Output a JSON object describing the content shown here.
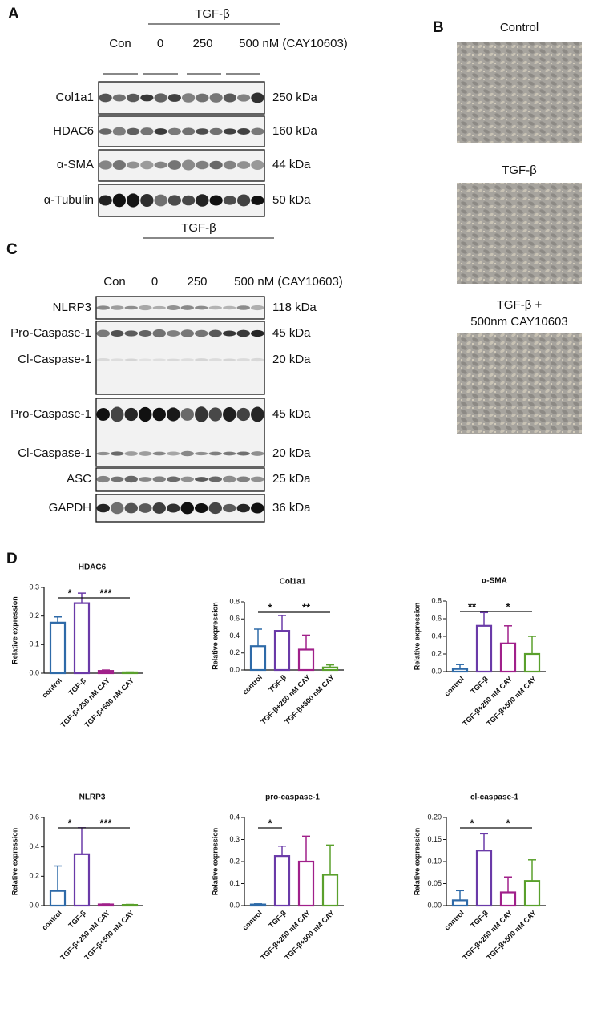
{
  "panel_labels": [
    "A",
    "B",
    "C",
    "D"
  ],
  "blot_a": {
    "treatment": "TGF-β",
    "columns": [
      "Con",
      "0",
      "250",
      "500 nM (CAY10603)"
    ],
    "rows": [
      {
        "name": "Col1a1",
        "size": "250 kDa"
      },
      {
        "name": "HDAC6",
        "size": "160 kDa"
      },
      {
        "name": "α-SMA",
        "size": "44 kDa"
      },
      {
        "name": "α-Tubulin",
        "size": "50 kDa"
      }
    ]
  },
  "micrographs": [
    {
      "lines": [
        "Control"
      ]
    },
    {
      "lines": [
        "TGF-β"
      ]
    },
    {
      "lines": [
        "TGF-β +",
        "500nm CAY10603"
      ]
    }
  ],
  "blot_c": {
    "treatment": "TGF-β",
    "columns": [
      "Con",
      "0",
      "250",
      "500 nM (CAY10603)"
    ],
    "rows": [
      {
        "name": "NLRP3",
        "size": "118 kDa"
      },
      {
        "name": "Pro-Caspase-1",
        "size": "45 kDa"
      },
      {
        "name": "Cl-Caspase-1",
        "size": "20 kDa"
      },
      {
        "name": "Pro-Caspase-1",
        "size": "45 kDa"
      },
      {
        "name": "Cl-Caspase-1",
        "size": "20 kDa"
      },
      {
        "name": "ASC",
        "size": "25 kDa"
      },
      {
        "name": "GAPDH",
        "size": "36 kDa"
      }
    ]
  },
  "chart_data": [
    {
      "type": "bar",
      "title": "HDAC6",
      "ylabel": "Relative expression",
      "categories": [
        "control",
        "TGF-β",
        "TGF-β+250 nM CAY",
        "TGF-β+500 nM CAY"
      ],
      "values": [
        0.177,
        0.245,
        0.008,
        0.003
      ],
      "errors": [
        0.02,
        0.035,
        0.003,
        0.001
      ],
      "colors": [
        "#2e6aa8",
        "#6a3aa8",
        "#a0208a",
        "#5aa02c"
      ],
      "ylim": [
        0,
        0.3
      ],
      "yticks": [
        {
          "value": 0,
          "label": "0.0"
        },
        0.1,
        0.2,
        0.3
      ],
      "significance": [
        {
          "between": [
            "control",
            "TGF-β"
          ],
          "label": "*"
        },
        {
          "between": [
            "TGF-β",
            "TGF-β+500 nM CAY"
          ],
          "label": "***"
        }
      ]
    },
    {
      "type": "bar",
      "title": "Col1a1",
      "ylabel": "Relative expression",
      "categories": [
        "control",
        "TGF-β",
        "TGF-β+250 nM CAY",
        "TGF-β+500 nM CAY"
      ],
      "values": [
        0.28,
        0.46,
        0.24,
        0.03
      ],
      "errors": [
        0.2,
        0.18,
        0.17,
        0.03
      ],
      "colors": [
        "#2e6aa8",
        "#6a3aa8",
        "#a0208a",
        "#5aa02c"
      ],
      "ylim": [
        0,
        0.8
      ],
      "yticks": [
        {
          "value": 0,
          "label": "0.0"
        },
        0.2,
        0.4,
        0.6,
        0.8
      ],
      "significance": [
        {
          "between": [
            "control",
            "TGF-β"
          ],
          "label": "*"
        },
        {
          "between": [
            "TGF-β",
            "TGF-β+500 nM CAY"
          ],
          "label": "**"
        }
      ]
    },
    {
      "type": "bar",
      "title": "α-SMA",
      "ylabel": "Relative expression",
      "categories": [
        "control",
        "TGF-β",
        "TGF-β+250 nM CAY",
        "TGF-β+500 nM CAY"
      ],
      "values": [
        0.03,
        0.52,
        0.32,
        0.2
      ],
      "errors": [
        0.05,
        0.15,
        0.2,
        0.2
      ],
      "colors": [
        "#2e6aa8",
        "#6a3aa8",
        "#a0208a",
        "#5aa02c"
      ],
      "ylim": [
        0,
        0.8
      ],
      "yticks": [
        {
          "value": 0,
          "label": "0.0"
        },
        0.2,
        0.4,
        0.6,
        0.8
      ],
      "significance": [
        {
          "between": [
            "control",
            "TGF-β"
          ],
          "label": "**"
        },
        {
          "between": [
            "TGF-β",
            "TGF-β+500 nM CAY"
          ],
          "label": "*"
        }
      ]
    },
    {
      "type": "bar",
      "title": "NLRP3",
      "ylabel": "Relative expression",
      "categories": [
        "control",
        "TGF-β",
        "TGF-β+250 nM CAY",
        "TGF-β+500 nM CAY"
      ],
      "values": [
        0.1,
        0.35,
        0.008,
        0.005
      ],
      "errors": [
        0.17,
        0.18,
        0.003,
        0.003
      ],
      "colors": [
        "#2e6aa8",
        "#6a3aa8",
        "#a0208a",
        "#5aa02c"
      ],
      "ylim": [
        0,
        0.6
      ],
      "yticks": [
        {
          "value": 0,
          "label": "0.0"
        },
        0.2,
        0.4,
        0.6
      ],
      "significance": [
        {
          "between": [
            "control",
            "TGF-β"
          ],
          "label": "*"
        },
        {
          "between": [
            "TGF-β",
            "TGF-β+500 nM CAY"
          ],
          "label": "***"
        }
      ]
    },
    {
      "type": "bar",
      "title": "pro-caspase-1",
      "ylabel": "Relative expression",
      "categories": [
        "control",
        "TGF-β",
        "TGF-β+250 nM CAY",
        "TGF-β+500 nM CAY"
      ],
      "values": [
        0.005,
        0.225,
        0.2,
        0.14
      ],
      "errors": [
        0.003,
        0.045,
        0.115,
        0.135
      ],
      "colors": [
        "#2e6aa8",
        "#6a3aa8",
        "#a0208a",
        "#5aa02c"
      ],
      "ylim": [
        0,
        0.4
      ],
      "yticks": [
        {
          "value": 0,
          "label": "0.0"
        },
        0.1,
        0.2,
        0.3,
        0.4
      ],
      "significance": [
        {
          "between": [
            "control",
            "TGF-β"
          ],
          "label": "*"
        }
      ]
    },
    {
      "type": "bar",
      "title": "cl-caspase-1",
      "ylabel": "Relative expression",
      "categories": [
        "control",
        "TGF-β",
        "TGF-β+250 nM CAY",
        "TGF-β+500 nM CAY"
      ],
      "values": [
        0.012,
        0.125,
        0.03,
        0.056
      ],
      "errors": [
        0.022,
        0.038,
        0.035,
        0.048
      ],
      "colors": [
        "#2e6aa8",
        "#6a3aa8",
        "#a0208a",
        "#5aa02c"
      ],
      "ylim": [
        0,
        0.2
      ],
      "yticks": [
        {
          "value": 0,
          "label": "0.00"
        },
        {
          "value": 0.05,
          "label": "0.05"
        },
        {
          "value": 0.1,
          "label": "0.10"
        },
        {
          "value": 0.15,
          "label": "0.15"
        },
        {
          "value": 0.2,
          "label": "0.20"
        }
      ],
      "significance": [
        {
          "between": [
            "control",
            "TGF-β"
          ],
          "label": "*"
        },
        {
          "between": [
            "TGF-β",
            "TGF-β+500 nM CAY"
          ],
          "label": "*"
        }
      ]
    }
  ]
}
